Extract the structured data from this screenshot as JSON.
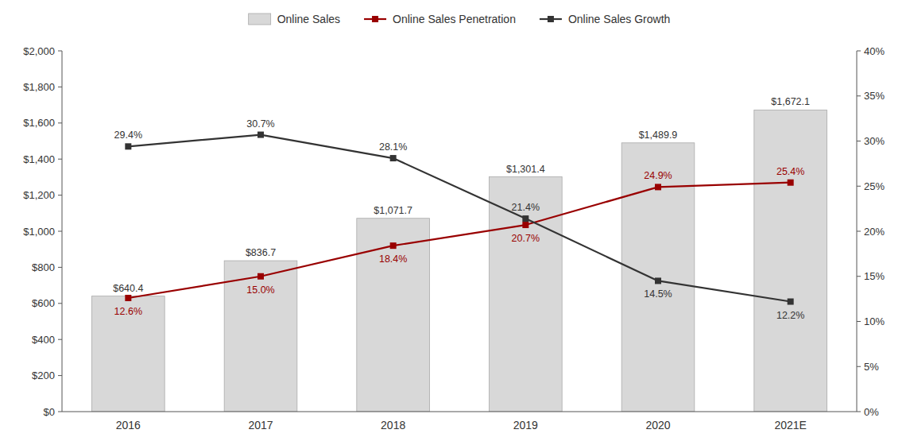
{
  "chart_data": {
    "type": "bar",
    "categories": [
      "2016",
      "2017",
      "2018",
      "2019",
      "2020",
      "2021E"
    ],
    "series": [
      {
        "name": "Online Sales",
        "type": "bar",
        "color": "#d8d8d8",
        "values": [
          640.4,
          836.7,
          1071.7,
          1301.4,
          1489.9,
          1672.1
        ],
        "value_labels": [
          "$640.4",
          "$836.7",
          "$1,071.7",
          "$1,301.4",
          "$1,489.9",
          "$1,672.1"
        ]
      },
      {
        "name": "Online Sales Penetration",
        "type": "line",
        "color": "#990000",
        "marker": "square",
        "axis": "y2",
        "values": [
          12.6,
          15.0,
          18.4,
          20.7,
          24.9,
          25.4
        ],
        "value_labels": [
          "12.6%",
          "15.0%",
          "18.4%",
          "20.7%",
          "24.9%",
          "25.4%"
        ]
      },
      {
        "name": "Online Sales Growth",
        "type": "line",
        "color": "#333333",
        "marker": "square",
        "axis": "y2",
        "values": [
          29.4,
          30.7,
          28.1,
          21.4,
          14.5,
          12.2
        ],
        "value_labels": [
          "29.4%",
          "30.7%",
          "28.1%",
          "21.4%",
          "14.5%",
          "12.2%"
        ]
      }
    ],
    "ylim": [
      0,
      2000
    ],
    "yticks": [
      {
        "value": 0,
        "label": "$0"
      },
      {
        "value": 200,
        "label": "$200"
      },
      {
        "value": 400,
        "label": "$400"
      },
      {
        "value": 600,
        "label": "$600"
      },
      {
        "value": 800,
        "label": "$800"
      },
      {
        "value": 1000,
        "label": "$1,000"
      },
      {
        "value": 1200,
        "label": "$1,200"
      },
      {
        "value": 1400,
        "label": "$1,400"
      },
      {
        "value": 1600,
        "label": "$1,600"
      },
      {
        "value": 1800,
        "label": "$1,800"
      },
      {
        "value": 2000,
        "label": "$2,000"
      }
    ],
    "y2lim": [
      0,
      40
    ],
    "y2ticks": [
      {
        "value": 0,
        "label": "0%"
      },
      {
        "value": 5,
        "label": "5%"
      },
      {
        "value": 10,
        "label": "10%"
      },
      {
        "value": 15,
        "label": "15%"
      },
      {
        "value": 20,
        "label": "20%"
      },
      {
        "value": 25,
        "label": "25%"
      },
      {
        "value": 30,
        "label": "30%"
      },
      {
        "value": 35,
        "label": "35%"
      },
      {
        "value": 40,
        "label": "40%"
      }
    ],
    "data_labels": true,
    "legend": "top",
    "grid": false
  }
}
